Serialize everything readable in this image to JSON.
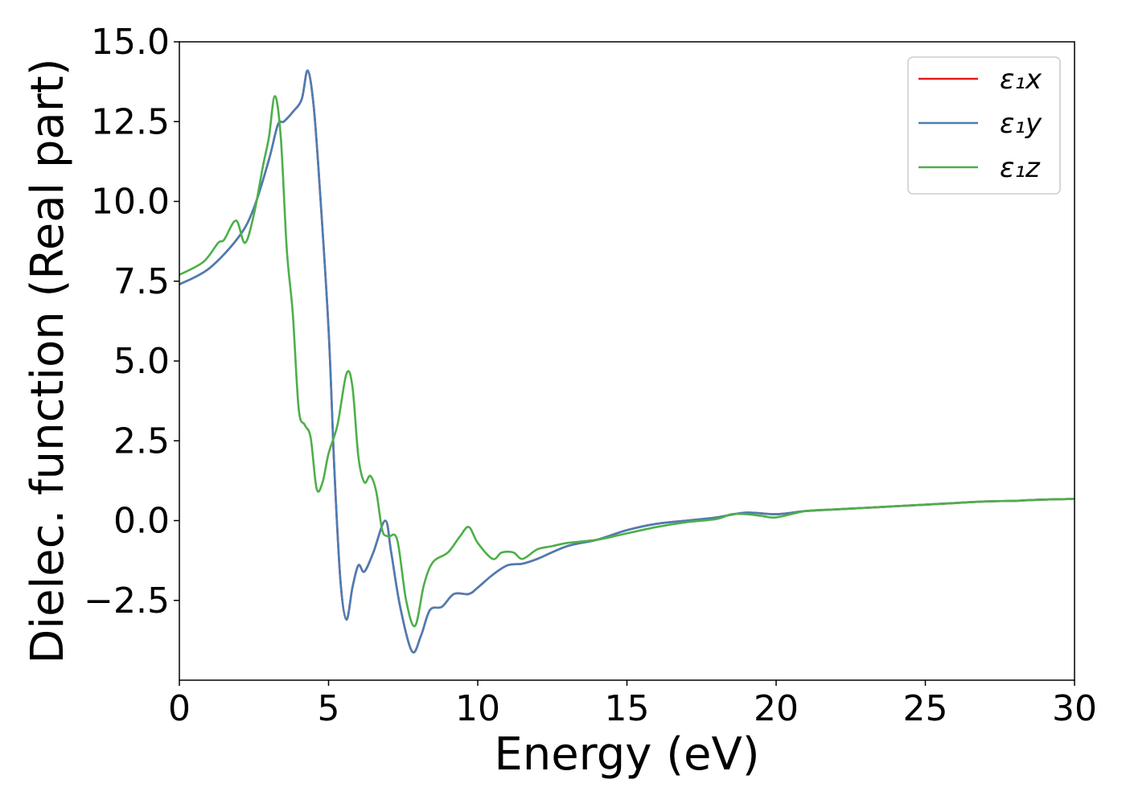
{
  "chart_data": {
    "type": "line",
    "title": "",
    "xlabel": "Energy (eV)",
    "ylabel": "Dielec. function (Real part)",
    "xlim": [
      0,
      30
    ],
    "ylim": [
      -5,
      15
    ],
    "xticks": [
      0,
      5,
      10,
      15,
      20,
      25,
      30
    ],
    "xtick_labels": [
      "0",
      "5",
      "10",
      "15",
      "20",
      "25",
      "30"
    ],
    "yticks": [
      -2.5,
      0,
      2.5,
      5,
      7.5,
      10,
      12.5,
      15
    ],
    "ytick_labels": [
      "−2.5",
      "0.0",
      "2.5",
      "5.0",
      "7.5",
      "10.0",
      "12.5",
      "15.0"
    ],
    "grid": false,
    "legend_position": "top-right",
    "series": [
      {
        "name": "ε₁x",
        "color": "#e41a1c",
        "x": [
          0,
          1,
          2,
          2.5,
          3,
          3.3,
          3.5,
          3.8,
          4.1,
          4.3,
          4.5,
          4.7,
          5.0,
          5.2,
          5.4,
          5.6,
          5.8,
          6.0,
          6.2,
          6.5,
          6.9,
          7.1,
          7.4,
          7.8,
          8.1,
          8.4,
          8.8,
          9.2,
          9.7,
          10.0,
          10.5,
          11.0,
          11.5,
          12.0,
          13.0,
          14.0,
          15.0,
          16.0,
          17.0,
          18.0,
          19.0,
          20.0,
          21.0,
          22.0,
          23.0,
          24.0,
          25.0,
          26.0,
          27.0,
          28.0,
          29.0,
          30.0
        ],
        "y": [
          7.4,
          7.9,
          8.9,
          9.8,
          11.3,
          12.4,
          12.5,
          12.8,
          13.2,
          14.1,
          13.0,
          10.5,
          6.0,
          1.5,
          -1.9,
          -3.1,
          -2.1,
          -1.4,
          -1.6,
          -1.0,
          0.0,
          -1.0,
          -2.7,
          -4.1,
          -3.6,
          -2.8,
          -2.7,
          -2.3,
          -2.3,
          -2.1,
          -1.7,
          -1.4,
          -1.35,
          -1.2,
          -0.8,
          -0.6,
          -0.3,
          -0.1,
          0.0,
          0.1,
          0.25,
          0.2,
          0.3,
          0.35,
          0.4,
          0.45,
          0.5,
          0.55,
          0.6,
          0.62,
          0.66,
          0.68
        ]
      },
      {
        "name": "ε₁y",
        "color": "#4a7eb4",
        "x": [
          0,
          1,
          2,
          2.5,
          3,
          3.3,
          3.5,
          3.8,
          4.1,
          4.3,
          4.5,
          4.7,
          5.0,
          5.2,
          5.4,
          5.6,
          5.8,
          6.0,
          6.2,
          6.5,
          6.9,
          7.1,
          7.4,
          7.8,
          8.1,
          8.4,
          8.8,
          9.2,
          9.7,
          10.0,
          10.5,
          11.0,
          11.5,
          12.0,
          13.0,
          14.0,
          15.0,
          16.0,
          17.0,
          18.0,
          19.0,
          20.0,
          21.0,
          22.0,
          23.0,
          24.0,
          25.0,
          26.0,
          27.0,
          28.0,
          29.0,
          30.0
        ],
        "y": [
          7.4,
          7.9,
          8.9,
          9.8,
          11.3,
          12.4,
          12.5,
          12.8,
          13.2,
          14.1,
          13.0,
          10.5,
          6.0,
          1.5,
          -1.9,
          -3.1,
          -2.1,
          -1.4,
          -1.6,
          -1.0,
          0.0,
          -1.0,
          -2.7,
          -4.1,
          -3.6,
          -2.8,
          -2.7,
          -2.3,
          -2.3,
          -2.1,
          -1.7,
          -1.4,
          -1.35,
          -1.2,
          -0.8,
          -0.6,
          -0.3,
          -0.1,
          0.0,
          0.1,
          0.25,
          0.2,
          0.3,
          0.35,
          0.4,
          0.45,
          0.5,
          0.55,
          0.6,
          0.62,
          0.66,
          0.68
        ]
      },
      {
        "name": "ε₁z",
        "color": "#4daf4a",
        "x": [
          0,
          0.8,
          1.3,
          1.5,
          1.9,
          2.2,
          2.5,
          2.8,
          3.0,
          3.2,
          3.4,
          3.6,
          3.8,
          4.0,
          4.2,
          4.4,
          4.6,
          4.8,
          5.0,
          5.3,
          5.6,
          5.8,
          6.0,
          6.2,
          6.4,
          6.6,
          6.8,
          7.0,
          7.3,
          7.6,
          7.9,
          8.2,
          8.5,
          9.0,
          9.4,
          9.7,
          10.0,
          10.5,
          10.8,
          11.2,
          11.5,
          12.0,
          12.5,
          13.0,
          14.0,
          15.0,
          16.0,
          17.0,
          18.0,
          18.5,
          19.0,
          19.5,
          20.0,
          21.0,
          22.0,
          23.0,
          24.0,
          25.0,
          26.0,
          27.0,
          28.0,
          29.0,
          30.0
        ],
        "y": [
          7.7,
          8.1,
          8.7,
          8.8,
          9.4,
          8.7,
          9.6,
          11.1,
          12.0,
          13.3,
          12.0,
          8.5,
          6.5,
          3.5,
          3.0,
          2.6,
          1.0,
          1.2,
          2.1,
          3.0,
          4.6,
          4.2,
          2.0,
          1.2,
          1.4,
          0.9,
          -0.3,
          -0.5,
          -0.6,
          -2.5,
          -3.3,
          -2.0,
          -1.3,
          -1.0,
          -0.5,
          -0.2,
          -0.7,
          -1.2,
          -1.0,
          -1.0,
          -1.2,
          -0.9,
          -0.8,
          -0.7,
          -0.6,
          -0.4,
          -0.2,
          -0.05,
          0.05,
          0.2,
          0.2,
          0.15,
          0.1,
          0.3,
          0.35,
          0.4,
          0.45,
          0.5,
          0.55,
          0.6,
          0.62,
          0.66,
          0.68
        ]
      }
    ]
  }
}
